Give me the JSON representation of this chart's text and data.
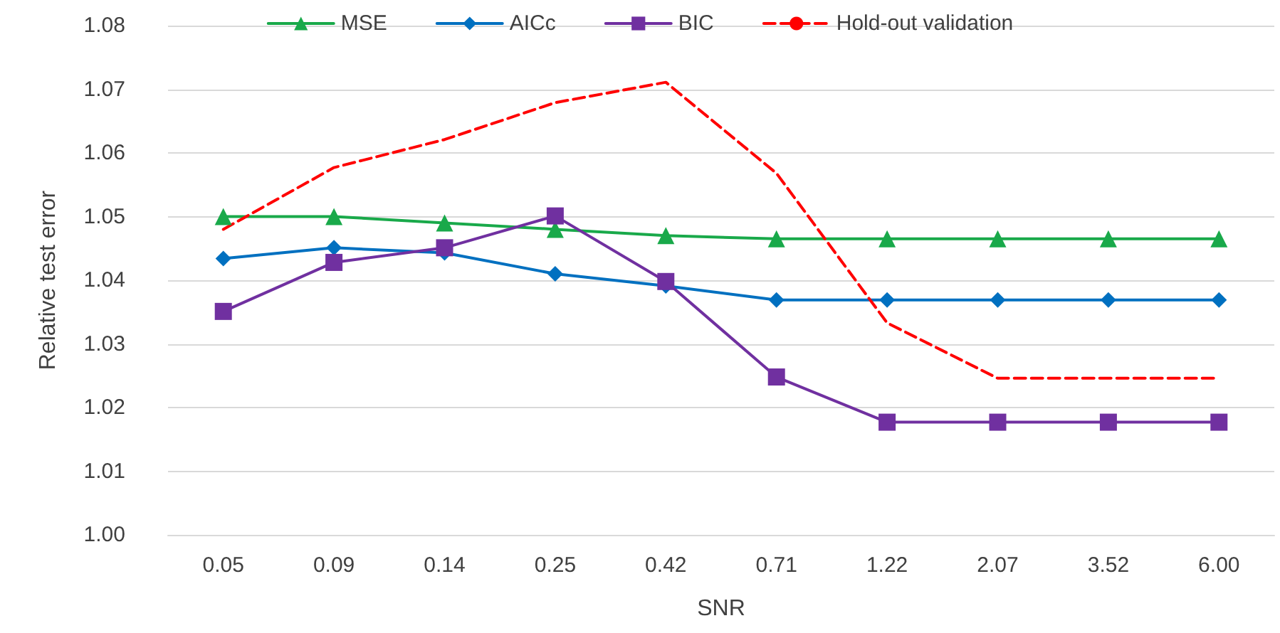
{
  "chart_data": {
    "type": "line",
    "xlabel": "SNR",
    "ylabel": "Relative test error",
    "categories": [
      "0.05",
      "0.09",
      "0.14",
      "0.25",
      "0.42",
      "0.71",
      "1.22",
      "2.07",
      "3.52",
      "6.00"
    ],
    "series": [
      {
        "name": "MSE",
        "color": "#19a94a",
        "marker": "triangle",
        "line_style": "solid",
        "values": [
          1.05,
          1.05,
          1.049,
          1.048,
          1.047,
          1.0465,
          1.0465,
          1.0465,
          1.0465,
          1.0465
        ]
      },
      {
        "name": "AICc",
        "color": "#0070c0",
        "marker": "diamond",
        "line_style": "solid",
        "values": [
          1.0434,
          1.0451,
          1.0443,
          1.041,
          1.0391,
          1.0369,
          1.0369,
          1.0369,
          1.0369,
          1.0369
        ]
      },
      {
        "name": "BIC",
        "color": "#7030a0",
        "marker": "square",
        "line_style": "solid",
        "values": [
          1.0351,
          1.0428,
          1.0451,
          1.0501,
          1.0398,
          1.0248,
          1.0177,
          1.0177,
          1.0177,
          1.0177
        ]
      },
      {
        "name": "Hold-out validation",
        "color": "#ff0000",
        "marker": "none",
        "line_style": "dashed",
        "values": [
          1.048,
          1.0577,
          1.0621,
          1.0679,
          1.0711,
          1.0568,
          1.0333,
          1.0246,
          1.0246,
          1.0246
        ]
      }
    ],
    "ylim": [
      1.0,
      1.08
    ],
    "yticks": [
      {
        "value": 1,
        "label": "1.00"
      },
      1.01,
      1.02,
      1.03,
      1.04,
      1.05,
      1.06,
      1.07,
      1.08
    ],
    "grid": "y",
    "legend": "top"
  }
}
